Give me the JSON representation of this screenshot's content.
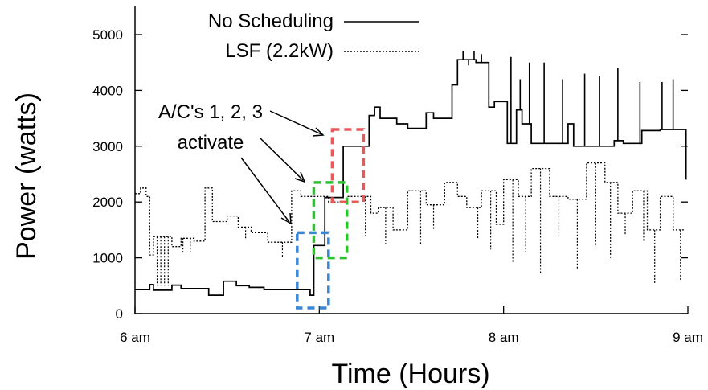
{
  "chart_data": {
    "type": "line",
    "title": "",
    "xlabel": "Time (Hours)",
    "ylabel": "Power (watts)",
    "xlim": [
      6,
      9
    ],
    "ylim": [
      0,
      5500
    ],
    "x_ticks": [
      {
        "value": 6,
        "label": "6 am"
      },
      {
        "value": 7,
        "label": "7 am"
      },
      {
        "value": 8,
        "label": "8 am"
      },
      {
        "value": 9,
        "label": "9 am"
      }
    ],
    "y_ticks": [
      {
        "value": 0,
        "label": "0"
      },
      {
        "value": 1000,
        "label": "1000"
      },
      {
        "value": 2000,
        "label": "2000"
      },
      {
        "value": 3000,
        "label": "3000"
      },
      {
        "value": 4000,
        "label": "4000"
      },
      {
        "value": 5000,
        "label": "5000"
      }
    ],
    "grid": false,
    "legend_position": "top-center",
    "series": [
      {
        "name": "No Scheduling",
        "style": "solid",
        "color": "#000000",
        "points": [
          [
            6.0,
            430
          ],
          [
            6.08,
            430
          ],
          [
            6.08,
            520
          ],
          [
            6.1,
            520
          ],
          [
            6.1,
            420
          ],
          [
            6.2,
            420
          ],
          [
            6.2,
            510
          ],
          [
            6.25,
            510
          ],
          [
            6.25,
            450
          ],
          [
            6.4,
            450
          ],
          [
            6.4,
            330
          ],
          [
            6.48,
            330
          ],
          [
            6.48,
            580
          ],
          [
            6.55,
            580
          ],
          [
            6.55,
            500
          ],
          [
            6.62,
            500
          ],
          [
            6.62,
            470
          ],
          [
            6.7,
            470
          ],
          [
            6.7,
            430
          ],
          [
            6.95,
            430
          ],
          [
            6.95,
            330
          ],
          [
            6.97,
            330
          ],
          [
            6.97,
            1220
          ],
          [
            7.03,
            1220
          ],
          [
            7.03,
            2080
          ],
          [
            7.13,
            2080
          ],
          [
            7.13,
            3000
          ],
          [
            7.27,
            3000
          ],
          [
            7.27,
            3550
          ],
          [
            7.3,
            3550
          ],
          [
            7.3,
            3700
          ],
          [
            7.33,
            3700
          ],
          [
            7.33,
            3500
          ],
          [
            7.42,
            3500
          ],
          [
            7.42,
            3400
          ],
          [
            7.48,
            3400
          ],
          [
            7.48,
            3320
          ],
          [
            7.58,
            3320
          ],
          [
            7.58,
            3600
          ],
          [
            7.62,
            3600
          ],
          [
            7.62,
            3500
          ],
          [
            7.72,
            3500
          ],
          [
            7.72,
            4100
          ],
          [
            7.75,
            4100
          ],
          [
            7.75,
            4550
          ],
          [
            7.85,
            4550
          ],
          [
            7.85,
            4500
          ],
          [
            7.92,
            4500
          ],
          [
            7.92,
            3700
          ],
          [
            7.95,
            3700
          ],
          [
            7.95,
            3800
          ],
          [
            8.02,
            3800
          ],
          [
            8.02,
            3050
          ],
          [
            8.07,
            3050
          ],
          [
            8.07,
            3650
          ],
          [
            8.1,
            3650
          ],
          [
            8.1,
            3400
          ],
          [
            8.15,
            3400
          ],
          [
            8.15,
            3050
          ],
          [
            8.35,
            3050
          ],
          [
            8.35,
            3400
          ],
          [
            8.38,
            3400
          ],
          [
            8.38,
            3000
          ],
          [
            8.6,
            3000
          ],
          [
            8.6,
            3100
          ],
          [
            8.65,
            3100
          ],
          [
            8.65,
            3050
          ],
          [
            8.75,
            3050
          ],
          [
            8.75,
            3280
          ],
          [
            8.85,
            3280
          ],
          [
            8.85,
            3300
          ],
          [
            8.99,
            3300
          ],
          [
            8.99,
            2400
          ]
        ]
      },
      {
        "name": "LSF (2.2kW)",
        "style": "dotted",
        "color": "#000000",
        "points": [
          [
            6.0,
            2150
          ],
          [
            6.03,
            2150
          ],
          [
            6.03,
            2250
          ],
          [
            6.06,
            2250
          ],
          [
            6.06,
            2100
          ],
          [
            6.08,
            2100
          ],
          [
            6.08,
            1050
          ],
          [
            6.1,
            1050
          ],
          [
            6.1,
            1380
          ],
          [
            6.2,
            1380
          ],
          [
            6.2,
            1200
          ],
          [
            6.25,
            1200
          ],
          [
            6.25,
            1350
          ],
          [
            6.32,
            1350
          ],
          [
            6.32,
            1300
          ],
          [
            6.38,
            1300
          ],
          [
            6.38,
            2250
          ],
          [
            6.42,
            2250
          ],
          [
            6.42,
            1650
          ],
          [
            6.5,
            1650
          ],
          [
            6.5,
            1750
          ],
          [
            6.56,
            1750
          ],
          [
            6.56,
            1550
          ],
          [
            6.63,
            1550
          ],
          [
            6.63,
            1450
          ],
          [
            6.72,
            1450
          ],
          [
            6.72,
            1280
          ],
          [
            6.85,
            1280
          ],
          [
            6.85,
            2200
          ],
          [
            6.9,
            2200
          ],
          [
            6.9,
            2100
          ],
          [
            7.05,
            2100
          ],
          [
            7.05,
            2000
          ],
          [
            7.15,
            2000
          ],
          [
            7.15,
            2100
          ],
          [
            7.28,
            2100
          ],
          [
            7.28,
            1800
          ],
          [
            7.32,
            1800
          ],
          [
            7.32,
            1900
          ],
          [
            7.4,
            1900
          ],
          [
            7.4,
            1500
          ],
          [
            7.48,
            1500
          ],
          [
            7.48,
            2200
          ],
          [
            7.58,
            2200
          ],
          [
            7.58,
            1950
          ],
          [
            7.68,
            1950
          ],
          [
            7.68,
            2350
          ],
          [
            7.75,
            2350
          ],
          [
            7.75,
            2100
          ],
          [
            7.8,
            2100
          ],
          [
            7.8,
            1900
          ],
          [
            7.88,
            1900
          ],
          [
            7.88,
            2200
          ],
          [
            7.96,
            2200
          ],
          [
            7.96,
            1600
          ],
          [
            8.0,
            1600
          ],
          [
            8.0,
            2400
          ],
          [
            8.08,
            2400
          ],
          [
            8.08,
            2100
          ],
          [
            8.15,
            2100
          ],
          [
            8.15,
            2600
          ],
          [
            8.25,
            2600
          ],
          [
            8.25,
            2100
          ],
          [
            8.35,
            2100
          ],
          [
            8.35,
            2050
          ],
          [
            8.45,
            2050
          ],
          [
            8.45,
            2700
          ],
          [
            8.55,
            2700
          ],
          [
            8.55,
            2350
          ],
          [
            8.62,
            2350
          ],
          [
            8.62,
            1800
          ],
          [
            8.7,
            1800
          ],
          [
            8.7,
            2200
          ],
          [
            8.78,
            2200
          ],
          [
            8.78,
            1500
          ],
          [
            8.85,
            1500
          ],
          [
            8.85,
            2100
          ],
          [
            8.92,
            2100
          ],
          [
            8.92,
            1500
          ],
          [
            8.98,
            1500
          ]
        ],
        "down_spikes": [
          [
            6.12,
            500
          ],
          [
            6.14,
            500
          ],
          [
            6.16,
            500
          ],
          [
            6.18,
            500
          ],
          [
            6.26,
            1100
          ],
          [
            6.3,
            1100
          ],
          [
            6.6,
            1350
          ],
          [
            6.8,
            1000
          ],
          [
            7.25,
            1400
          ],
          [
            7.36,
            1250
          ],
          [
            7.55,
            1250
          ],
          [
            7.62,
            1500
          ],
          [
            7.86,
            1350
          ],
          [
            7.93,
            1150
          ],
          [
            8.05,
            900
          ],
          [
            8.12,
            1100
          ],
          [
            8.2,
            700
          ],
          [
            8.3,
            1400
          ],
          [
            8.4,
            800
          ],
          [
            8.5,
            1200
          ],
          [
            8.58,
            1000
          ],
          [
            8.66,
            1400
          ],
          [
            8.76,
            1300
          ],
          [
            8.82,
            550
          ],
          [
            8.96,
            600
          ]
        ]
      }
    ],
    "spikes_solid": [
      7.78,
      7.81,
      7.84,
      7.88,
      8.04,
      8.09,
      8.14,
      8.22,
      8.32,
      8.44,
      8.52,
      8.62,
      8.74,
      8.86,
      8.92
    ],
    "spikes_solid_top": [
      4700,
      4450,
      4700,
      4650,
      4600,
      4200,
      4500,
      4500,
      4200,
      4300,
      4250,
      4400,
      4150,
      4150,
      4200
    ],
    "annotation": {
      "line1": "A/C's 1, 2, 3",
      "line2": "activate"
    },
    "highlight_boxes": [
      {
        "color": "#3a86d6",
        "x0": 6.88,
        "x1": 7.05,
        "y0": 100,
        "y1": 1450
      },
      {
        "color": "#2fc22f",
        "x0": 6.97,
        "x1": 7.15,
        "y0": 1000,
        "y1": 2350
      },
      {
        "color": "#e85a5a",
        "x0": 7.07,
        "x1": 7.24,
        "y0": 2000,
        "y1": 3300
      }
    ]
  }
}
